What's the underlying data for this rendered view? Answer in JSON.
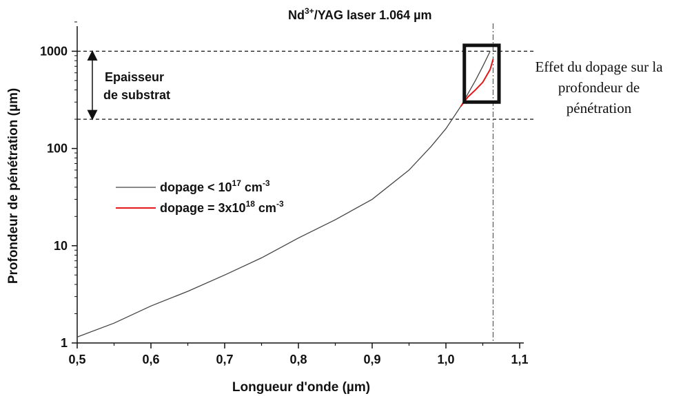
{
  "chart_data": {
    "type": "line",
    "xlabel": "Longueur d'onde (µm)",
    "ylabel": "Profondeur de pénétration (µm)",
    "xlim": [
      0.5,
      1.1
    ],
    "ylim": [
      1,
      2000
    ],
    "yscale": "log",
    "x_ticks": [
      "0,5",
      "0,6",
      "0,7",
      "0,8",
      "0,9",
      "1,0",
      "1,1"
    ],
    "y_ticks": [
      "1",
      "10",
      "100",
      "1000"
    ],
    "grid": false,
    "legend_position": "center-left",
    "series": [
      {
        "name": "dopage < 10^17 cm^-3",
        "color": "#444444",
        "x": [
          0.5,
          0.55,
          0.6,
          0.65,
          0.7,
          0.75,
          0.8,
          0.85,
          0.9,
          0.95,
          0.98,
          1.0,
          1.02,
          1.04,
          1.05,
          1.06
        ],
        "y": [
          1.15,
          1.6,
          2.4,
          3.4,
          5.0,
          7.5,
          12.0,
          18.5,
          30,
          60,
          105,
          160,
          270,
          500,
          700,
          1000
        ]
      },
      {
        "name": "dopage = 3x10^18 cm^-3",
        "color": "#e11919",
        "x": [
          1.02,
          1.03,
          1.04,
          1.05,
          1.06,
          1.064
        ],
        "y": [
          270,
          340,
          400,
          480,
          650,
          830
        ]
      }
    ],
    "legend": {
      "entry1_text": "dopage < 10",
      "entry1_exp": "17",
      "entry1_unit": " cm",
      "entry1_unit_exp": "-3",
      "entry2_text": "dopage = 3x10",
      "entry2_exp": "18",
      "entry2_unit": " cm",
      "entry2_unit_exp": "-3"
    },
    "annotations": {
      "laser_line_x": 1.064,
      "laser_label_a": "Nd",
      "laser_label_sup": "3+",
      "laser_label_b": "/YAG laser 1.064 µm",
      "substrate_top_y": 1000,
      "substrate_bottom_y": 200,
      "substrate_label_line1": "Epaisseur",
      "substrate_label_line2": "de substrat",
      "zoom_box_x": [
        1.025,
        1.072
      ],
      "zoom_box_y": [
        300,
        1150
      ],
      "effect_label_line1": "Effet du dopage sur la",
      "effect_label_line2": "profondeur de",
      "effect_label_line3": "pénétration"
    }
  }
}
